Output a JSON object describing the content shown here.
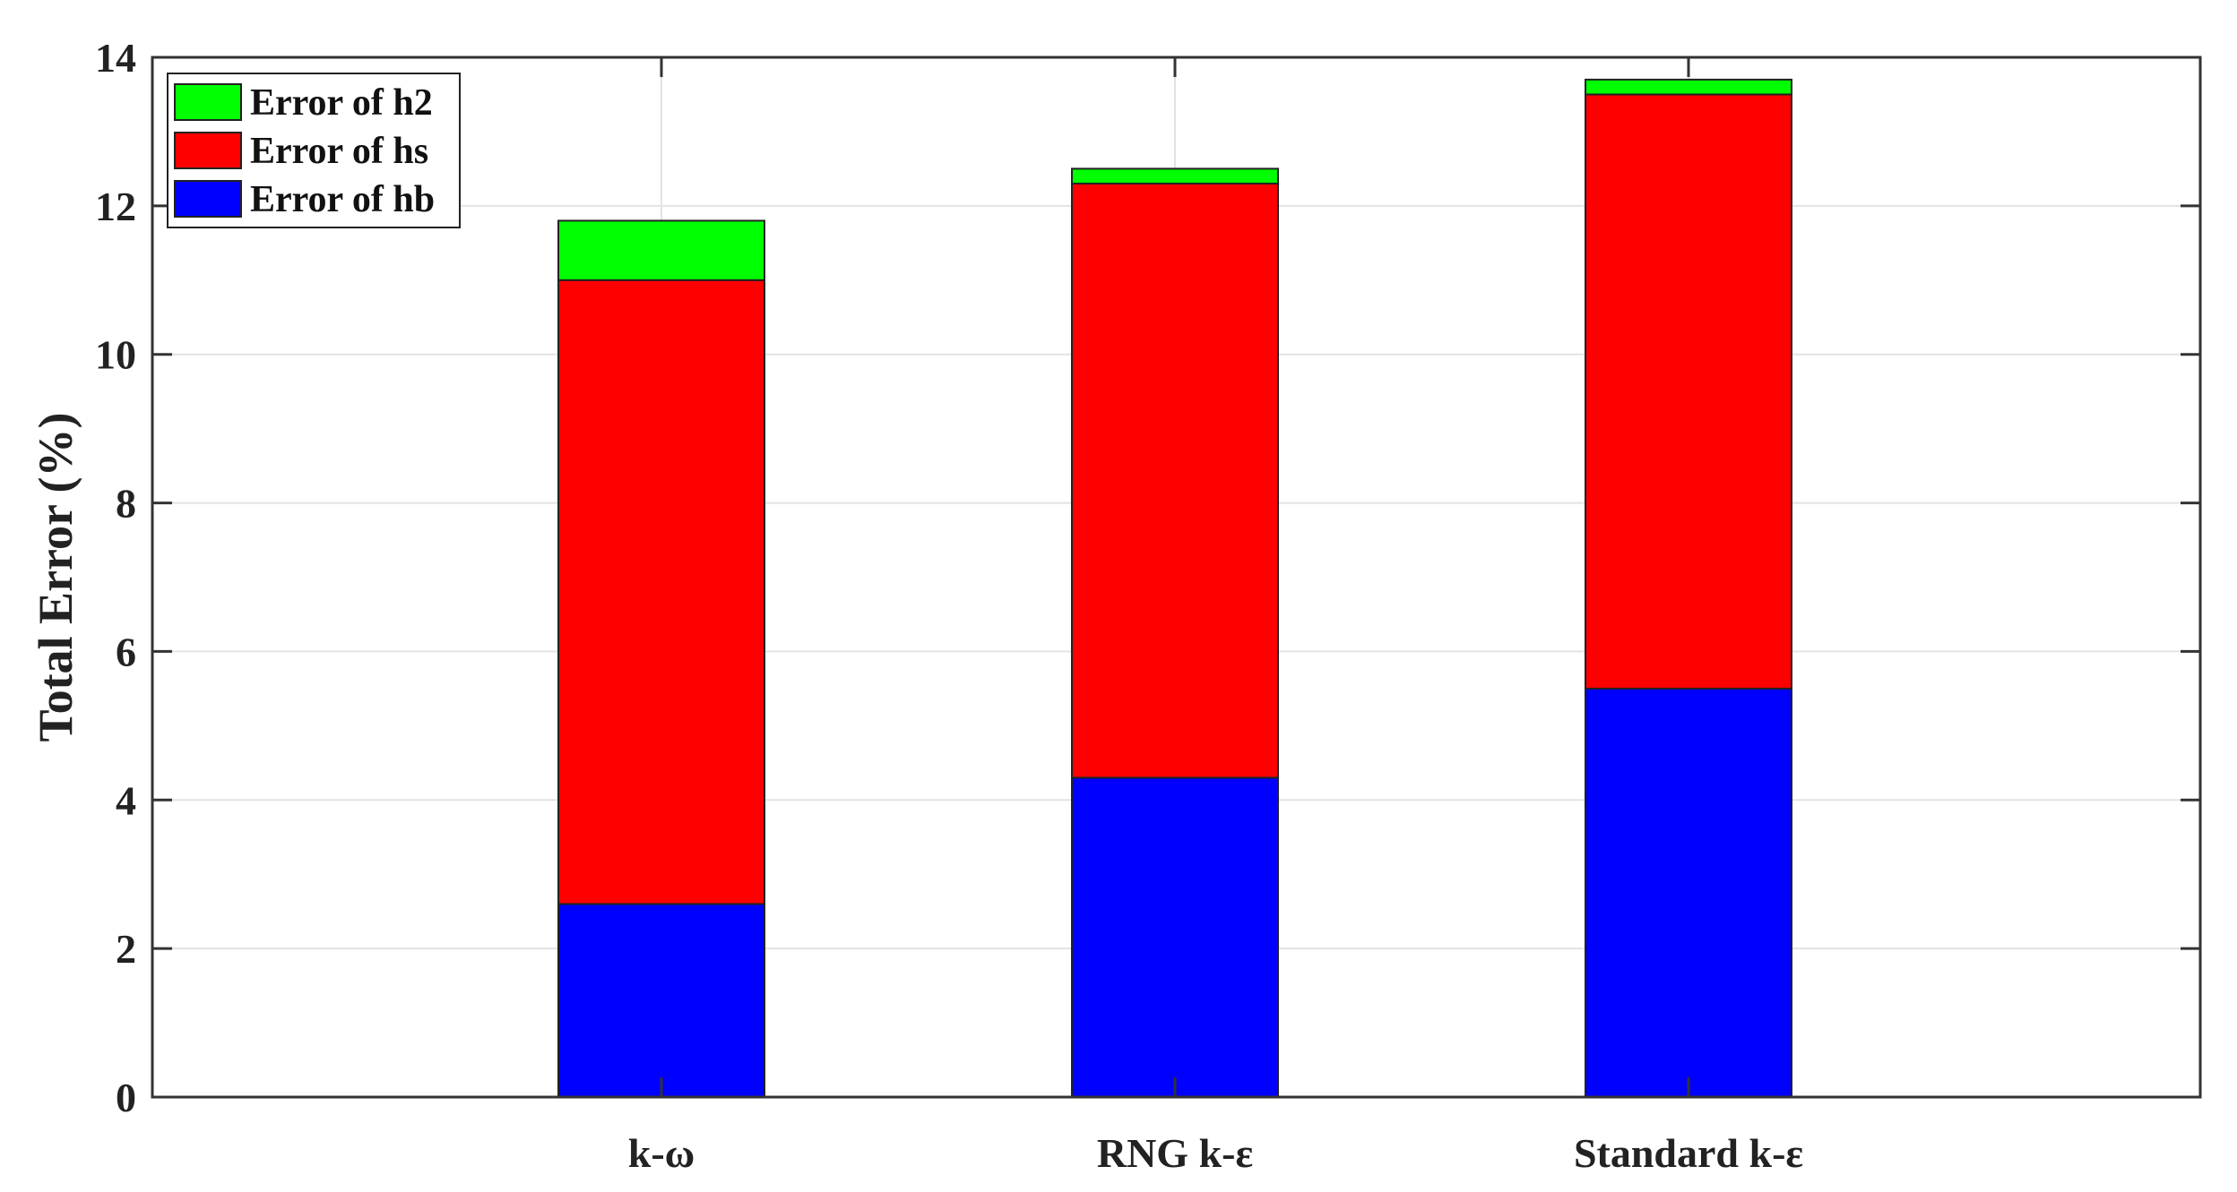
{
  "chart_data": {
    "type": "bar",
    "stacked": true,
    "categories": [
      "k-ω",
      "RNG k-ε",
      "Standard k-ε"
    ],
    "series": [
      {
        "name": "Error of hb",
        "color": "#0000ff",
        "values": [
          2.6,
          4.3,
          5.5
        ]
      },
      {
        "name": "Error of hs",
        "color": "#ff0000",
        "values": [
          8.4,
          8.0,
          8.0
        ]
      },
      {
        "name": "Error of h2",
        "color": "#00ff00",
        "values": [
          0.8,
          0.2,
          0.2
        ]
      }
    ],
    "legend_order": [
      "Error of h2",
      "Error of hs",
      "Error of hb"
    ],
    "title": "",
    "xlabel": "",
    "ylabel": "Total Error (%)",
    "ylim": [
      0,
      14
    ],
    "yticks": [
      0,
      2,
      4,
      6,
      8,
      10,
      12,
      14
    ],
    "grid": true,
    "legend_position": "top-left"
  }
}
